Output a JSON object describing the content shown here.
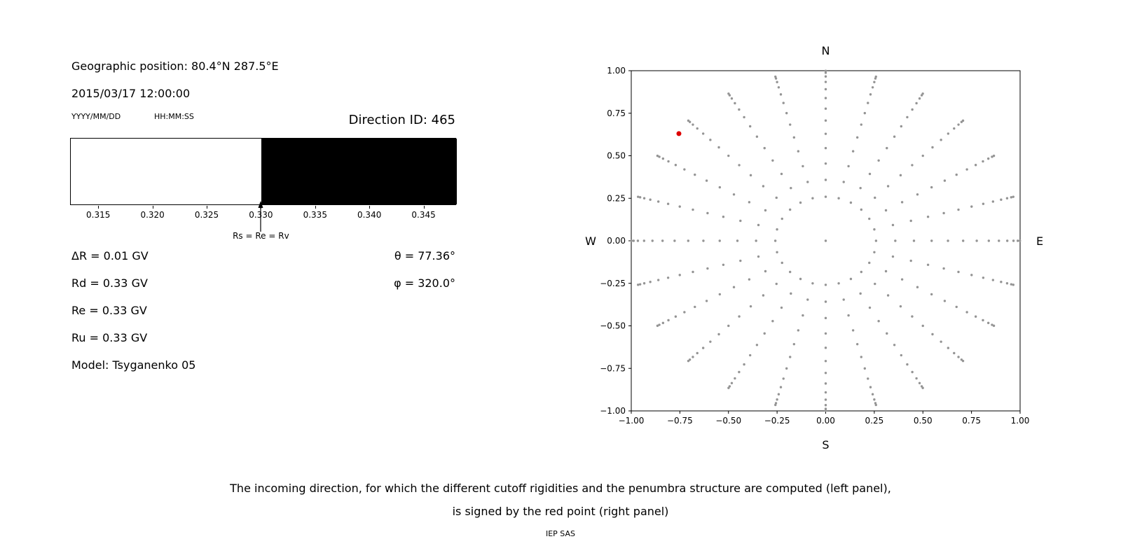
{
  "left_panel": {
    "geo_position": "Geographic position: 80.4°N 287.5°E",
    "datetime": "2015/03/17 12:00:00",
    "date_format_label": "YYYY/MM/DD",
    "time_format_label": "HH:MM:SS",
    "direction_id_label": "Direction ID: 465",
    "penumbra": {
      "xmin": 0.3124,
      "xmax": 0.348,
      "cutoff_boundary": 0.33,
      "tick_values": [
        0.315,
        0.32,
        0.325,
        0.33,
        0.335,
        0.34,
        0.345
      ],
      "tick_labels": [
        "0.315",
        "0.320",
        "0.325",
        "0.330",
        "0.335",
        "0.340",
        "0.345"
      ],
      "arrow_label": "Rs = Re = Rv",
      "forbidden_color": "#ffffff",
      "allowed_color": "#000000"
    },
    "info": {
      "delta_r": "ΔR = 0.01 GV",
      "rd": "Rd = 0.33 GV",
      "re": "Re = 0.33 GV",
      "ru": "Ru = 0.33 GV",
      "model": "Model: Tsyganenko 05",
      "theta": "θ = 77.36°",
      "phi": "φ = 320.0°"
    }
  },
  "chart_data": {
    "type": "scatter",
    "title": "",
    "compass": {
      "top": "N",
      "bottom": "S",
      "left": "W",
      "right": "E"
    },
    "xlim": [
      -1,
      1
    ],
    "ylim": [
      -1,
      1
    ],
    "xtick_values": [
      -1,
      -0.75,
      -0.5,
      -0.25,
      0,
      0.25,
      0.5,
      0.75,
      1
    ],
    "xtick_labels": [
      "−1.00",
      "−0.75",
      "−0.50",
      "−0.25",
      "0.00",
      "0.25",
      "0.50",
      "0.75",
      "1.00"
    ],
    "ytick_values": [
      1,
      0.75,
      0.5,
      0.25,
      0,
      -0.25,
      -0.5,
      -0.75,
      -1
    ],
    "ytick_labels": [
      "1.00",
      "0.75",
      "0.50",
      "0.25",
      "0.00",
      "−0.25",
      "−0.50",
      "−0.75",
      "−1.00"
    ],
    "grid": false,
    "legend": "none",
    "dot_color": "#949494",
    "red_color": "#dd0000",
    "spokes": {
      "azimuth_start_deg": 0,
      "azimuth_step_deg": 15,
      "azimuth_count": 24,
      "zenith_angles_deg": [
        15,
        21,
        27,
        33,
        39,
        45,
        51,
        57,
        63,
        69,
        75,
        81,
        87
      ],
      "radii": [
        0.259,
        0.358,
        0.454,
        0.545,
        0.629,
        0.707,
        0.777,
        0.839,
        0.891,
        0.934,
        0.966,
        0.988,
        0.999
      ]
    },
    "center_dot": true,
    "red_point": {
      "x": -0.755,
      "y": 0.63
    }
  },
  "caption": {
    "line1": "The incoming direction, for which the different cutoff rigidities and the penumbra structure are computed (left panel),",
    "line2": "is signed by the red point (right panel)",
    "credit": "IEP SAS"
  }
}
